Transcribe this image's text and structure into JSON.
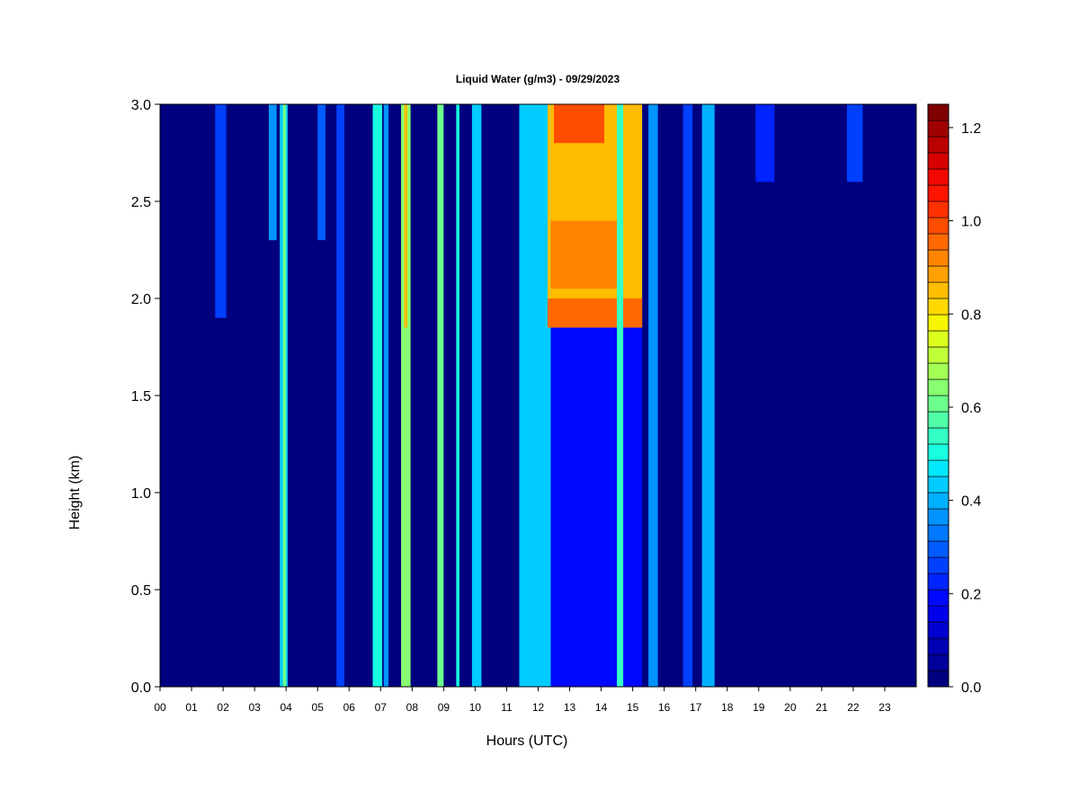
{
  "chart_data": {
    "type": "heatmap",
    "title": "Liquid Water (g/m3) - 09/29/2023",
    "xlabel": "Hours (UTC)",
    "ylabel": "Height (km)",
    "xlim": [
      0,
      24
    ],
    "ylim": [
      0.0,
      3.0
    ],
    "x_ticks": [
      "00",
      "01",
      "02",
      "03",
      "04",
      "05",
      "06",
      "07",
      "08",
      "09",
      "10",
      "11",
      "12",
      "13",
      "14",
      "15",
      "16",
      "17",
      "18",
      "19",
      "20",
      "21",
      "22",
      "23"
    ],
    "y_ticks": [
      "0.0",
      "0.5",
      "1.0",
      "1.5",
      "2.0",
      "2.5",
      "3.0"
    ],
    "colorbar": {
      "range": [
        0.0,
        1.25
      ],
      "ticks": [
        "0.0",
        "0.2",
        "0.4",
        "0.6",
        "0.8",
        "1.0",
        "1.2"
      ],
      "colors": [
        "#00007f",
        "#00009a",
        "#0000b5",
        "#0000d0",
        "#0000eb",
        "#0008ff",
        "#0024ff",
        "#0040ff",
        "#005cff",
        "#0078ff",
        "#0094ff",
        "#00b0ff",
        "#00ccff",
        "#00e8fb",
        "#18ffe0",
        "#34ffc4",
        "#50ffa8",
        "#6cff8c",
        "#88ff70",
        "#a4ff54",
        "#c0ff38",
        "#dcff1c",
        "#f8f500",
        "#ffd900",
        "#ffbd00",
        "#ffa100",
        "#ff8500",
        "#ff6900",
        "#ff4d00",
        "#ff3100",
        "#ff1500",
        "#f10800",
        "#d60000",
        "#bb0000",
        "#a00000",
        "#800000"
      ]
    },
    "features": [
      {
        "hour_start": 1.75,
        "hour_end": 2.1,
        "height_top": 3.0,
        "height_bottom": 1.9,
        "value": 0.25
      },
      {
        "hour_start": 3.45,
        "hour_end": 3.7,
        "height_top": 3.0,
        "height_bottom": 2.3,
        "value": 0.35
      },
      {
        "hour_start": 3.8,
        "hour_end": 4.05,
        "height_top": 3.0,
        "height_bottom": 0.0,
        "value": 0.42
      },
      {
        "hour_start": 3.9,
        "hour_end": 4.0,
        "height_top": 3.0,
        "height_bottom": 0.0,
        "value": 0.6
      },
      {
        "hour_start": 5.0,
        "hour_end": 5.25,
        "height_top": 3.0,
        "height_bottom": 2.3,
        "value": 0.3
      },
      {
        "hour_start": 5.6,
        "hour_end": 5.85,
        "height_top": 3.0,
        "height_bottom": 0.0,
        "value": 0.25
      },
      {
        "hour_start": 6.75,
        "hour_end": 7.05,
        "height_top": 3.0,
        "height_bottom": 0.0,
        "value": 0.5
      },
      {
        "hour_start": 7.1,
        "hour_end": 7.25,
        "height_top": 3.0,
        "height_bottom": 0.0,
        "value": 0.35
      },
      {
        "hour_start": 7.65,
        "hour_end": 7.95,
        "height_top": 3.0,
        "height_bottom": 0.0,
        "value": 0.65
      },
      {
        "hour_start": 7.75,
        "hour_end": 7.85,
        "height_top": 3.0,
        "height_bottom": 1.85,
        "value": 0.85
      },
      {
        "hour_start": 8.8,
        "hour_end": 9.0,
        "height_top": 3.0,
        "height_bottom": 0.0,
        "value": 0.6
      },
      {
        "hour_start": 9.4,
        "hour_end": 9.5,
        "height_top": 3.0,
        "height_bottom": 0.0,
        "value": 0.5
      },
      {
        "hour_start": 9.9,
        "hour_end": 10.2,
        "height_top": 3.0,
        "height_bottom": 0.0,
        "value": 0.45
      },
      {
        "hour_start": 11.4,
        "hour_end": 12.4,
        "height_top": 3.0,
        "height_bottom": 0.0,
        "value": 0.45
      },
      {
        "hour_start": 12.4,
        "hour_end": 15.3,
        "height_top": 3.0,
        "height_bottom": 0.0,
        "value": 0.2
      },
      {
        "hour_start": 12.3,
        "hour_end": 15.3,
        "height_top": 3.0,
        "height_bottom": 1.85,
        "value": 0.85
      },
      {
        "hour_start": 12.5,
        "hour_end": 14.1,
        "height_top": 3.0,
        "height_bottom": 2.8,
        "value": 1.0
      },
      {
        "hour_start": 12.4,
        "hour_end": 14.5,
        "height_top": 2.4,
        "height_bottom": 2.05,
        "value": 0.92
      },
      {
        "hour_start": 12.3,
        "hour_end": 15.3,
        "height_top": 2.0,
        "height_bottom": 1.85,
        "value": 0.95
      },
      {
        "hour_start": 14.5,
        "hour_end": 14.7,
        "height_top": 3.0,
        "height_bottom": 0.0,
        "value": 0.55
      },
      {
        "hour_start": 15.5,
        "hour_end": 15.8,
        "height_top": 3.0,
        "height_bottom": 0.0,
        "value": 0.35
      },
      {
        "hour_start": 16.6,
        "hour_end": 16.9,
        "height_top": 3.0,
        "height_bottom": 0.0,
        "value": 0.25
      },
      {
        "hour_start": 17.2,
        "hour_end": 17.6,
        "height_top": 3.0,
        "height_bottom": 0.0,
        "value": 0.4
      },
      {
        "hour_start": 18.9,
        "hour_end": 19.5,
        "height_top": 3.0,
        "height_bottom": 2.6,
        "value": 0.22
      },
      {
        "hour_start": 21.8,
        "hour_end": 22.3,
        "height_top": 3.0,
        "height_bottom": 2.6,
        "value": 0.25
      }
    ]
  }
}
